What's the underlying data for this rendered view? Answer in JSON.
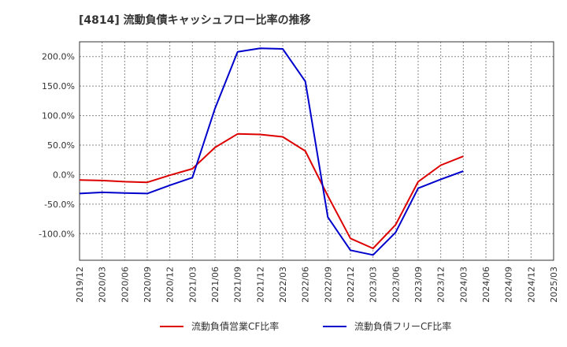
{
  "chart_data": {
    "type": "line",
    "title": "[4814]  流動負債キャッシュフロー比率の推移",
    "x": [
      "2019/12",
      "2020/03",
      "2020/06",
      "2020/09",
      "2020/12",
      "2021/03",
      "2021/06",
      "2021/09",
      "2021/12",
      "2022/03",
      "2022/06",
      "2022/09",
      "2022/12",
      "2023/03",
      "2023/06",
      "2023/09",
      "2023/12",
      "2024/03",
      "2024/06",
      "2024/09",
      "2024/12",
      "2025/03"
    ],
    "y_ticks": [
      "200.0%",
      "150.0%",
      "100.0%",
      "50.0%",
      "0.0%",
      "-50.0%",
      "-100.0%"
    ],
    "y_tick_values": [
      200,
      150,
      100,
      50,
      0,
      -50,
      -100
    ],
    "ylim": [
      -145,
      225
    ],
    "grid": true,
    "legend_position": "bottom",
    "series": [
      {
        "name": "流動負債営業CF比率",
        "color": "#dd0000",
        "values": [
          -9,
          -10,
          -12,
          -13,
          -1,
          10,
          46,
          69,
          68,
          64,
          40,
          -36,
          -108,
          -125,
          -85,
          -12,
          16,
          31,
          null,
          null,
          null,
          null
        ]
      },
      {
        "name": "流動負債フリーCF比率",
        "color": "#0000cc",
        "values": [
          -32,
          -30,
          -31,
          -32,
          -18,
          -5,
          112,
          208,
          214,
          213,
          158,
          -72,
          -128,
          -136,
          -98,
          -23,
          -8,
          6,
          null,
          null,
          null,
          null
        ]
      }
    ]
  }
}
